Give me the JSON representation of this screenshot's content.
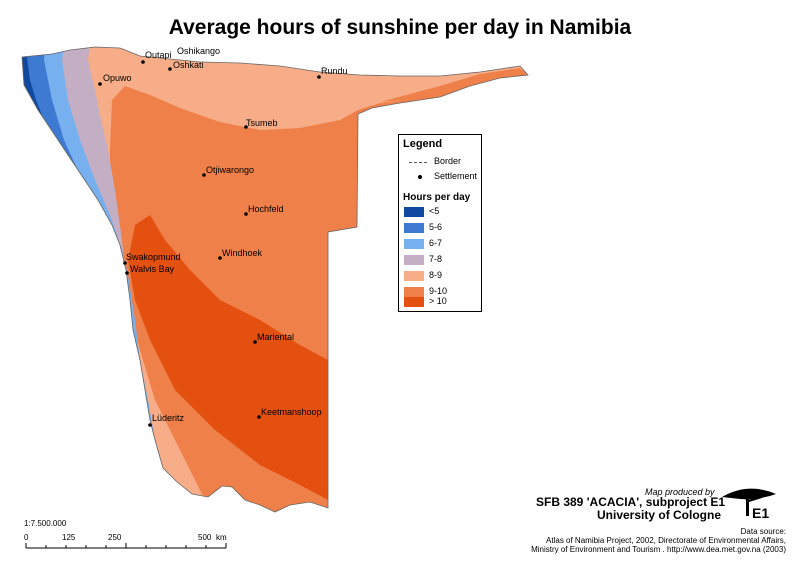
{
  "title": "Average hours of sunshine per day in Namibia",
  "legend": {
    "title": "Legend",
    "border_label": "Border",
    "settlement_label": "Settlement",
    "classes_title": "Hours per day",
    "classes": [
      {
        "label": "<5",
        "color": "#0f4aa0"
      },
      {
        "label": "5-6",
        "color": "#3f7ad2"
      },
      {
        "label": "6-7",
        "color": "#76b0ef"
      },
      {
        "label": "7-8",
        "color": "#c3aec4"
      },
      {
        "label": "8-9",
        "color": "#f6ad88"
      },
      {
        "label": "9-10",
        "color": "#ef8049"
      },
      {
        "label": "> 10",
        "color": "#e4500f"
      }
    ]
  },
  "settlements": [
    "Outapi",
    "Oshikango",
    "Oshkati",
    "Rundu",
    "Opuwo",
    "Tsumeb",
    "Otjiwarongo",
    "Hochfeld",
    "Windhoek",
    "Swakopmund",
    "Walvis Bay",
    "Mariental",
    "Lüderitz",
    "Keetmanshoop"
  ],
  "credit": {
    "produced_by": "Map produced by",
    "line1": "SFB 389 'ACACIA', subproject E1",
    "line2": "University of Cologne",
    "badge": "E1"
  },
  "source": {
    "label": "Data source:",
    "line1": "Atlas of Namibia Project, 2002, Directorate of Environmental Affairs,",
    "line2": "Ministry of Environment and Tourism . http://www.dea.met.gov.na (2003)"
  },
  "scale": {
    "ratio": "1:7.500.000",
    "ticks": [
      "0",
      "125",
      "250",
      "500"
    ],
    "unit": "km"
  }
}
